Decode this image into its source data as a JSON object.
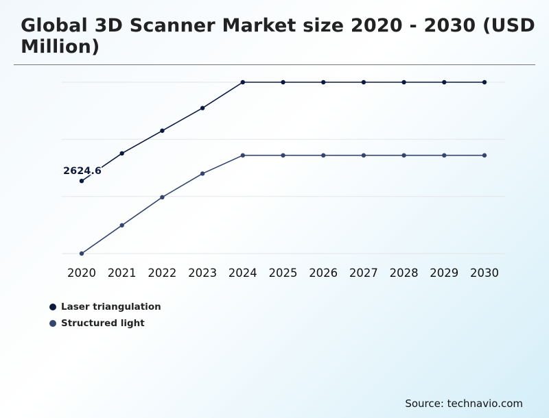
{
  "header": {
    "title": "Global 3D Scanner Market size 2020 - 2030 (USD Million)"
  },
  "footer": {
    "source": "Source: technavio.com"
  },
  "chart_data": {
    "type": "line",
    "title": "Global 3D Scanner Market size 2020 - 2030 (USD Million)",
    "x": [
      "2020",
      "2021",
      "2022",
      "2023",
      "2024",
      "2025",
      "2026",
      "2027",
      "2028",
      "2029",
      "2030"
    ],
    "grid": true,
    "legend": "bottom-left",
    "series": [
      {
        "name": "Laser triangulation",
        "color": "#0c1a40",
        "values": [
          2624.6,
          2900,
          3126,
          3352,
          3610,
          3610,
          3610,
          3610,
          3610,
          3610,
          3610
        ]
      },
      {
        "name": "Structured light",
        "color": "#34456e",
        "values": [
          1900,
          2182,
          2462,
          2698,
          2880,
          2880,
          2880,
          2880,
          2880,
          2880,
          2880
        ]
      }
    ],
    "annotations": [
      {
        "series": 0,
        "index": 0,
        "text": "2624.6"
      }
    ]
  }
}
